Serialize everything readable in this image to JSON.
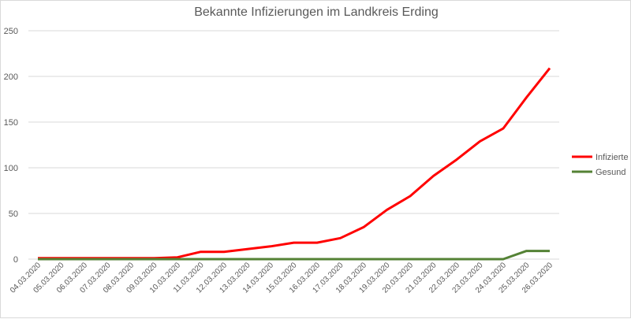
{
  "chart_data": {
    "type": "line",
    "title": "Bekannte Infizierungen im Landkreis Erding",
    "xlabel": "",
    "ylabel": "",
    "ylim": [
      0,
      250
    ],
    "yticks": [
      0,
      50,
      100,
      150,
      200,
      250
    ],
    "grid": true,
    "legend_position": "right",
    "categories": [
      "04.03.2020",
      "05.03.2020",
      "06.03.2020",
      "07.03.2020",
      "08.03.2020",
      "09.03.2020",
      "10.03.2020",
      "11.03.2020",
      "12.03.2020",
      "13.03.2020",
      "14.03.2020",
      "15.03.2020",
      "16.03.2020",
      "17.03.2020",
      "18.03.2020",
      "19.03.2020",
      "20.03.2020",
      "21.03.2020",
      "22.03.2020",
      "23.03.2020",
      "24.03.2020",
      "25.03.2020",
      "26.03.2020"
    ],
    "series": [
      {
        "name": "Infizierte",
        "color": "#ff0000",
        "values": [
          1,
          1,
          1,
          1,
          1,
          1,
          2,
          8,
          8,
          11,
          14,
          18,
          18,
          23,
          35,
          54,
          69,
          91,
          109,
          129,
          143,
          177,
          209
        ]
      },
      {
        "name": "Gesund",
        "color": "#548235",
        "values": [
          0,
          0,
          0,
          0,
          0,
          0,
          0,
          0,
          0,
          0,
          0,
          0,
          0,
          0,
          0,
          0,
          0,
          0,
          0,
          0,
          0,
          9,
          9
        ]
      }
    ],
    "colors": {
      "grid": "#d9d9d9",
      "axis_text": "#595959",
      "title": "#595959"
    }
  }
}
